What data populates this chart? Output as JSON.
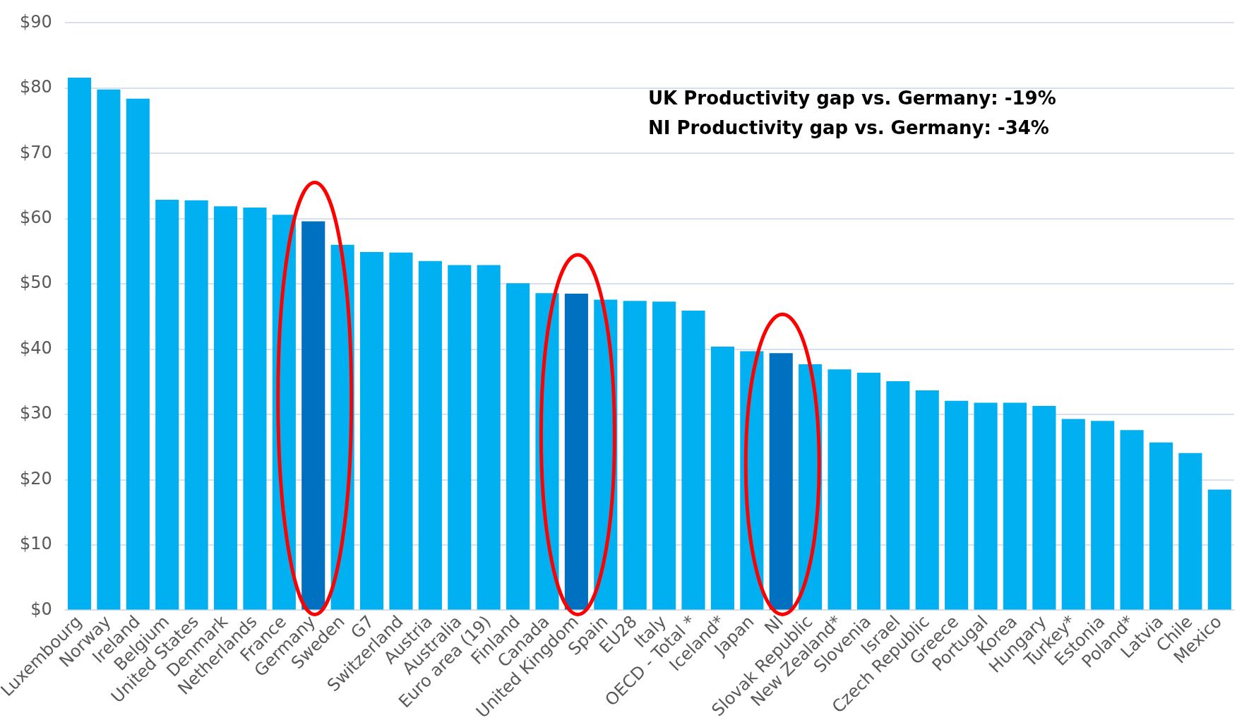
{
  "chart_data": {
    "type": "bar",
    "categories": [
      "Luxembourg",
      "Norway",
      "Ireland",
      "Belgium",
      "United States",
      "Denmark",
      "Netherlands",
      "France",
      "Germany",
      "Sweden",
      "G7",
      "Switzerland",
      "Austria",
      "Australia",
      "Euro area (19)",
      "Finland",
      "Canada",
      "United Kingdom",
      "Spain",
      "EU28",
      "Italy",
      "OECD - Total *",
      "Iceland*",
      "Japan",
      "NI",
      "Slovak Republic",
      "New Zealand*",
      "Slovenia",
      "Israel",
      "Czech Republic",
      "Greece",
      "Portugal",
      "Korea",
      "Hungary",
      "Turkey*",
      "Estonia",
      "Poland*",
      "Latvia",
      "Chile",
      "Mexico"
    ],
    "values": [
      81.6,
      79.8,
      78.4,
      62.9,
      62.8,
      61.9,
      61.7,
      60.6,
      59.6,
      56.0,
      54.9,
      54.8,
      53.5,
      52.9,
      52.9,
      50.1,
      48.6,
      48.5,
      47.6,
      47.4,
      47.3,
      45.9,
      40.4,
      39.7,
      39.4,
      37.7,
      36.9,
      36.4,
      35.1,
      33.7,
      32.1,
      31.8,
      31.8,
      31.3,
      29.3,
      29.0,
      27.6,
      25.7,
      24.1,
      18.5
    ],
    "colors": [
      "#00b0f0",
      "#00b0f0",
      "#00b0f0",
      "#00b0f0",
      "#00b0f0",
      "#00b0f0",
      "#00b0f0",
      "#00b0f0",
      "#0070c0",
      "#00b0f0",
      "#00b0f0",
      "#00b0f0",
      "#00b0f0",
      "#00b0f0",
      "#00b0f0",
      "#00b0f0",
      "#00b0f0",
      "#0070c0",
      "#00b0f0",
      "#00b0f0",
      "#00b0f0",
      "#00b0f0",
      "#00b0f0",
      "#00b0f0",
      "#0070c0",
      "#00b0f0",
      "#00b0f0",
      "#00b0f0",
      "#00b0f0",
      "#00b0f0",
      "#00b0f0",
      "#00b0f0",
      "#00b0f0",
      "#00b0f0",
      "#00b0f0",
      "#00b0f0",
      "#00b0f0",
      "#00b0f0",
      "#00b0f0",
      "#00b0f0"
    ],
    "ylim": [
      0,
      90
    ],
    "yticks": [
      {
        "value": 0,
        "label": "$0"
      },
      {
        "value": 10,
        "label": "$10"
      },
      {
        "value": 20,
        "label": "$20"
      },
      {
        "value": 30,
        "label": "$30"
      },
      {
        "value": 40,
        "label": "$40"
      },
      {
        "value": 50,
        "label": "$50"
      },
      {
        "value": 60,
        "label": "$60"
      },
      {
        "value": 70,
        "label": "$70"
      },
      {
        "value": 80,
        "label": "$80"
      },
      {
        "value": 90,
        "label": "$90"
      }
    ],
    "grid": "y",
    "legend": false,
    "annotations": [
      "UK Productivity gap vs. Germany: -19%",
      "NI Productivity gap vs. Germany: -34%"
    ]
  }
}
